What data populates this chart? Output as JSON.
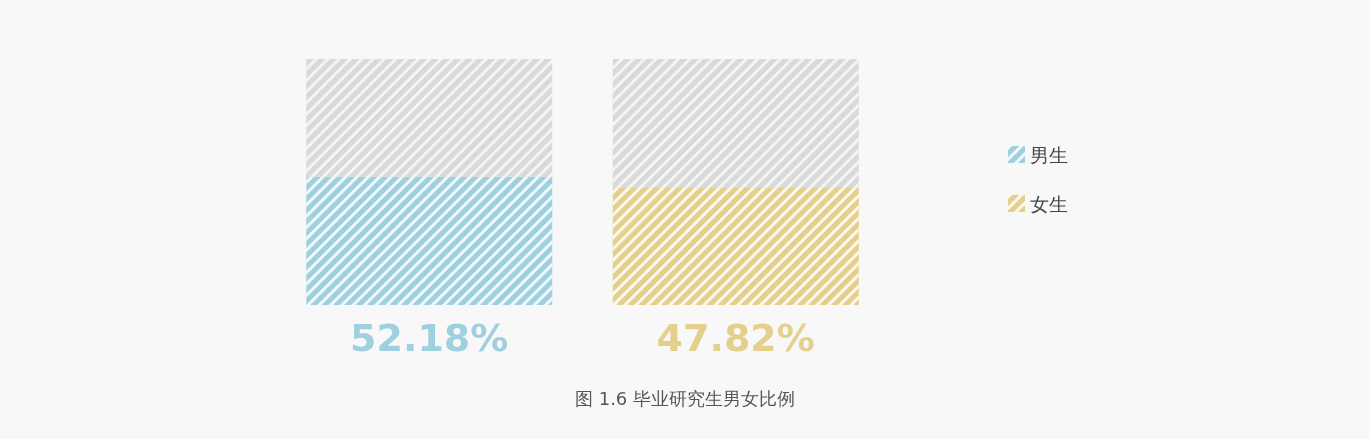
{
  "chart_data": {
    "type": "bar",
    "stacked": true,
    "title": "图 1.6 毕业研究生男女比例",
    "categories": [
      null,
      null
    ],
    "tick_labels": false,
    "legend": "right",
    "series": [
      {
        "name": "男生",
        "color": "#9fd0e0",
        "values": [
          52.18,
          null
        ],
        "value_labels": [
          "52.18%",
          null
        ]
      },
      {
        "name": "女生",
        "color": "#e4cf8d",
        "values": [
          null,
          47.82
        ],
        "value_labels": [
          null,
          "47.82%"
        ]
      },
      {
        "color": "#d9d9d9",
        "values": [
          47.82,
          52.18
        ]
      }
    ]
  }
}
